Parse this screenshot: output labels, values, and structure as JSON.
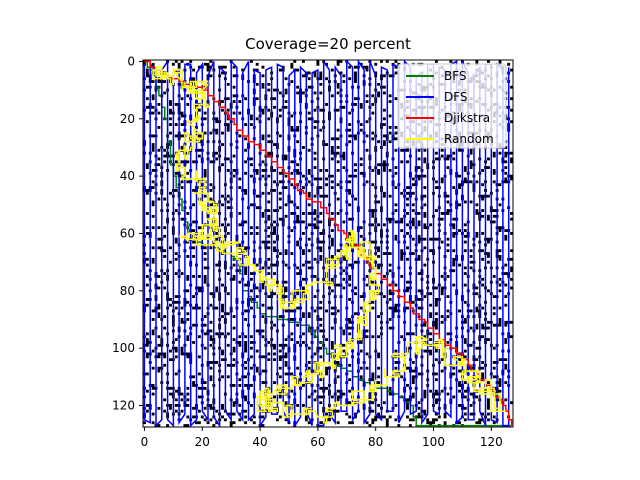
{
  "chart_data": {
    "type": "line",
    "title": "Coverage=20 percent",
    "xlabel": "",
    "ylabel": "",
    "xlim": [
      0,
      127
    ],
    "ylim": [
      127,
      0
    ],
    "y_axis_inverted": true,
    "x_ticks": [
      0,
      20,
      40,
      60,
      80,
      100,
      120
    ],
    "y_ticks": [
      0,
      20,
      40,
      60,
      80,
      100,
      120
    ],
    "background": "binary obstacle grid, ~20% black cells",
    "legend_position": "top-right",
    "series": [
      {
        "name": "BFS",
        "color": "#008000",
        "points": [
          [
            0,
            0
          ],
          [
            3,
            5
          ],
          [
            7,
            18
          ],
          [
            10,
            40
          ],
          [
            12,
            48
          ],
          [
            16,
            62
          ],
          [
            26,
            66
          ],
          [
            33,
            70
          ],
          [
            34,
            80
          ],
          [
            40,
            88
          ],
          [
            56,
            92
          ],
          [
            66,
            106
          ],
          [
            76,
            112
          ],
          [
            86,
            116
          ],
          [
            92,
            120
          ],
          [
            94,
            127
          ],
          [
            110,
            127
          ],
          [
            127,
            127
          ]
        ]
      },
      {
        "name": "DFS",
        "color": "#0000ff",
        "style": "serpentine",
        "x_start": 0,
        "x_end": 127,
        "y_min": 0,
        "y_max": 127
      },
      {
        "name": "Djikstra",
        "color": "#ff0000",
        "points": [
          [
            0,
            0
          ],
          [
            6,
            5
          ],
          [
            12,
            7
          ],
          [
            20,
            10
          ],
          [
            26,
            16
          ],
          [
            32,
            24
          ],
          [
            42,
            33
          ],
          [
            52,
            43
          ],
          [
            56,
            48
          ],
          [
            60,
            49
          ],
          [
            64,
            55
          ],
          [
            72,
            64
          ],
          [
            80,
            74
          ],
          [
            90,
            84
          ],
          [
            100,
            95
          ],
          [
            110,
            104
          ],
          [
            118,
            113
          ],
          [
            124,
            120
          ],
          [
            127,
            127
          ]
        ]
      },
      {
        "name": "Random",
        "color": "#ffff00",
        "style": "random-walk",
        "points": [
          [
            3,
            3
          ],
          [
            12,
            6
          ],
          [
            20,
            10
          ],
          [
            18,
            24
          ],
          [
            12,
            34
          ],
          [
            20,
            46
          ],
          [
            24,
            58
          ],
          [
            15,
            62
          ],
          [
            30,
            64
          ],
          [
            42,
            76
          ],
          [
            50,
            86
          ],
          [
            64,
            72
          ],
          [
            72,
            60
          ],
          [
            80,
            76
          ],
          [
            76,
            92
          ],
          [
            66,
            104
          ],
          [
            56,
            110
          ],
          [
            44,
            116
          ],
          [
            40,
            120
          ],
          [
            60,
            124
          ],
          [
            80,
            112
          ],
          [
            96,
            96
          ],
          [
            108,
            104
          ],
          [
            116,
            112
          ],
          [
            124,
            120
          ]
        ]
      }
    ]
  }
}
